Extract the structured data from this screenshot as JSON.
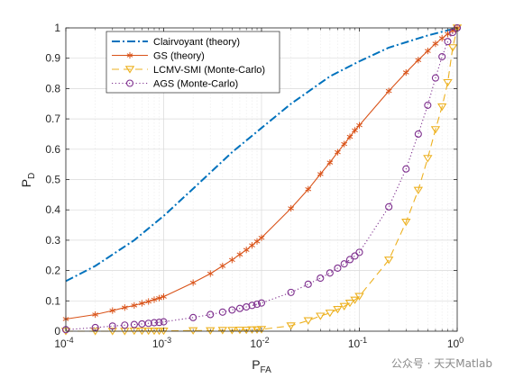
{
  "chart_data": {
    "type": "line",
    "xscale": "log",
    "xlim": [
      0.0001,
      1
    ],
    "ylim": [
      0,
      1
    ],
    "xlabel": "P",
    "xlabel_sub": "FA",
    "ylabel": "P",
    "ylabel_sub": "D",
    "grid": true,
    "legend_position": "top-left",
    "x_ticks": [
      {
        "value": 0.0001,
        "base": "10",
        "exp": "-4"
      },
      {
        "value": 0.001,
        "base": "10",
        "exp": "-3"
      },
      {
        "value": 0.01,
        "base": "10",
        "exp": "-2"
      },
      {
        "value": 0.1,
        "base": "10",
        "exp": "-1"
      },
      {
        "value": 1,
        "base": "10",
        "exp": "0"
      }
    ],
    "y_ticks": [
      {
        "value": 0,
        "label": "0"
      },
      {
        "value": 0.1,
        "label": "0.1"
      },
      {
        "value": 0.2,
        "label": "0.2"
      },
      {
        "value": 0.3,
        "label": "0.3"
      },
      {
        "value": 0.4,
        "label": "0.4"
      },
      {
        "value": 0.5,
        "label": "0.5"
      },
      {
        "value": 0.6,
        "label": "0.6"
      },
      {
        "value": 0.7,
        "label": "0.7"
      },
      {
        "value": 0.8,
        "label": "0.8"
      },
      {
        "value": 0.9,
        "label": "0.9"
      },
      {
        "value": 1,
        "label": "1"
      }
    ],
    "series": [
      {
        "name": "Clairvoyant (theory)",
        "color": "#0072BD",
        "line_style": "dashdot",
        "marker": "none",
        "x": [
          0.0001,
          0.0002,
          0.0005,
          0.001,
          0.002,
          0.005,
          0.01,
          0.02,
          0.05,
          0.1,
          0.2,
          0.5,
          1
        ],
        "y": [
          0.165,
          0.215,
          0.3,
          0.38,
          0.47,
          0.59,
          0.67,
          0.75,
          0.84,
          0.89,
          0.935,
          0.975,
          1.0
        ]
      },
      {
        "name": "GS (theory)",
        "color": "#D95319",
        "line_style": "solid",
        "marker": "asterisk",
        "x": [
          0.0001,
          0.0002,
          0.0003,
          0.0004,
          0.0005,
          0.0006,
          0.0007,
          0.0008,
          0.0009,
          0.001,
          0.002,
          0.003,
          0.004,
          0.005,
          0.006,
          0.007,
          0.008,
          0.009,
          0.01,
          0.02,
          0.03,
          0.04,
          0.05,
          0.06,
          0.07,
          0.08,
          0.09,
          0.1,
          0.2,
          0.3,
          0.4,
          0.5,
          0.6,
          0.7,
          0.8,
          0.9,
          1
        ],
        "y": [
          0.04,
          0.055,
          0.068,
          0.078,
          0.085,
          0.092,
          0.098,
          0.104,
          0.109,
          0.114,
          0.16,
          0.19,
          0.215,
          0.235,
          0.253,
          0.268,
          0.283,
          0.296,
          0.308,
          0.405,
          0.468,
          0.518,
          0.556,
          0.59,
          0.617,
          0.641,
          0.662,
          0.679,
          0.792,
          0.853,
          0.894,
          0.924,
          0.948,
          0.966,
          0.98,
          0.991,
          1.0
        ]
      },
      {
        "name": "LCMV-SMI (Monte-Carlo)",
        "color": "#EDB120",
        "line_style": "dashed",
        "marker": "triangle-down",
        "x": [
          0.0001,
          0.0002,
          0.0003,
          0.0004,
          0.0005,
          0.0006,
          0.0007,
          0.0008,
          0.0009,
          0.001,
          0.002,
          0.003,
          0.004,
          0.005,
          0.006,
          0.007,
          0.008,
          0.009,
          0.01,
          0.02,
          0.03,
          0.04,
          0.05,
          0.06,
          0.07,
          0.08,
          0.09,
          0.1,
          0.2,
          0.3,
          0.4,
          0.5,
          0.6,
          0.7,
          0.8,
          0.9,
          1
        ],
        "y": [
          0.0,
          0.0,
          0.0,
          0.0,
          0.001,
          0.001,
          0.001,
          0.001,
          0.001,
          0.001,
          0.002,
          0.002,
          0.003,
          0.003,
          0.004,
          0.004,
          0.005,
          0.005,
          0.006,
          0.018,
          0.035,
          0.05,
          0.06,
          0.072,
          0.082,
          0.093,
          0.103,
          0.115,
          0.235,
          0.36,
          0.465,
          0.57,
          0.665,
          0.74,
          0.82,
          0.935,
          1.0
        ]
      },
      {
        "name": "AGS (Monte-Carlo)",
        "color": "#7E2F8E",
        "line_style": "dotted",
        "marker": "circle",
        "x": [
          0.0001,
          0.0002,
          0.0003,
          0.0004,
          0.0005,
          0.0006,
          0.0007,
          0.0008,
          0.0009,
          0.001,
          0.002,
          0.003,
          0.004,
          0.005,
          0.006,
          0.007,
          0.008,
          0.009,
          0.01,
          0.02,
          0.03,
          0.04,
          0.05,
          0.06,
          0.07,
          0.08,
          0.09,
          0.1,
          0.2,
          0.3,
          0.4,
          0.5,
          0.6,
          0.7,
          0.8,
          0.9,
          1
        ],
        "y": [
          0.005,
          0.012,
          0.017,
          0.02,
          0.022,
          0.024,
          0.026,
          0.028,
          0.029,
          0.031,
          0.045,
          0.055,
          0.063,
          0.07,
          0.075,
          0.08,
          0.085,
          0.089,
          0.093,
          0.128,
          0.155,
          0.175,
          0.192,
          0.208,
          0.222,
          0.236,
          0.248,
          0.26,
          0.41,
          0.535,
          0.65,
          0.745,
          0.835,
          0.905,
          0.955,
          0.985,
          1.0
        ]
      }
    ]
  },
  "watermark": "公众号 · 天天Matlab"
}
